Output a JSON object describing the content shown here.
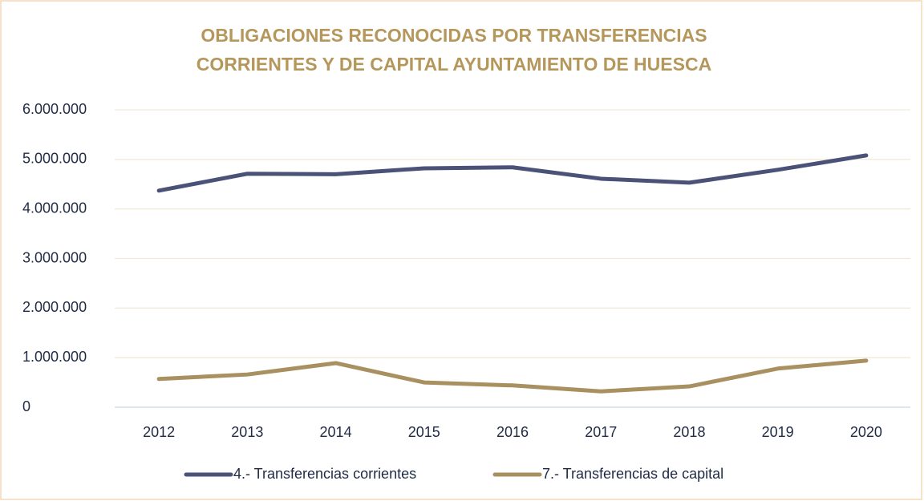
{
  "chart_data": {
    "type": "line",
    "title": [
      "OBLIGACIONES RECONOCIDAS POR TRANSFERENCIAS",
      "CORRIENTES Y DE CAPITAL AYUNTAMIENTO DE HUESCA"
    ],
    "categories": [
      "2012",
      "2013",
      "2014",
      "2015",
      "2016",
      "2017",
      "2018",
      "2019",
      "2020"
    ],
    "series": [
      {
        "name": "4.- Transferencias corrientes",
        "color": "#4a5278",
        "values": [
          4370000,
          4710000,
          4700000,
          4820000,
          4840000,
          4610000,
          4530000,
          4790000,
          5080000
        ]
      },
      {
        "name": "7.- Transferencias de capital",
        "color": "#a89060",
        "values": [
          570000,
          660000,
          890000,
          500000,
          440000,
          320000,
          420000,
          780000,
          940000
        ]
      }
    ],
    "ylim": [
      0,
      6000000
    ],
    "yticks": [
      0,
      {
        "value": 1000000,
        "label": "1.000.000"
      },
      {
        "value": 2000000,
        "label": "2.000.000"
      },
      {
        "value": 3000000,
        "label": "3.000.000"
      },
      {
        "value": 4000000,
        "label": "4.000.000"
      },
      {
        "value": 5000000,
        "label": "5.000.000"
      },
      {
        "value": 6000000,
        "label": "6.000.000"
      }
    ],
    "grid": true,
    "legend": "bottom"
  }
}
